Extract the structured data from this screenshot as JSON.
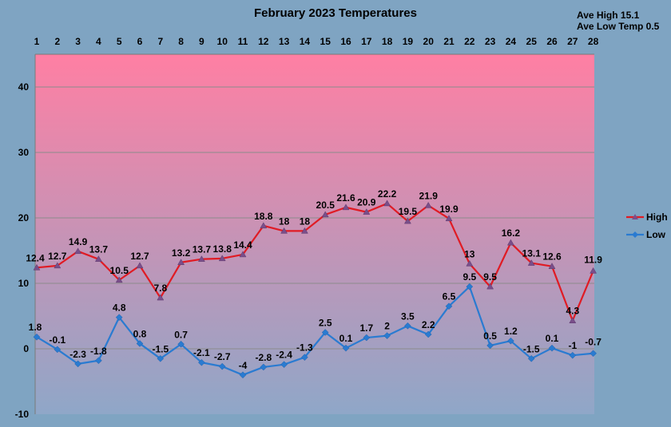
{
  "chart_data": {
    "type": "line",
    "title": "February 2023 Temperatures",
    "stats": {
      "ave_high": "Ave High 15.1",
      "ave_low": "Ave Low Temp 0.5"
    },
    "x": [
      "1",
      "2",
      "3",
      "4",
      "5",
      "6",
      "7",
      "8",
      "9",
      "10",
      "11",
      "12",
      "13",
      "14",
      "15",
      "16",
      "17",
      "18",
      "19",
      "20",
      "21",
      "22",
      "23",
      "24",
      "25",
      "26",
      "27",
      "28"
    ],
    "x_axis_position": "top",
    "ylim": [
      -10,
      45
    ],
    "yticks": [
      -10,
      0,
      10,
      20,
      30,
      40
    ],
    "grid": true,
    "legend_position": "right",
    "background_gradient": {
      "top": "#ff7fa3",
      "bottom": "#8fa7c8"
    },
    "series": [
      {
        "name": "High",
        "color": "#e01b24",
        "marker": "triangle",
        "values": [
          12.4,
          12.7,
          14.9,
          13.7,
          10.5,
          12.7,
          7.8,
          13.2,
          13.7,
          13.8,
          14.4,
          18.8,
          18,
          18,
          20.5,
          21.6,
          20.9,
          22.2,
          19.5,
          21.9,
          19.9,
          13,
          9.5,
          16.2,
          13.1,
          12.6,
          4.3,
          11.9
        ]
      },
      {
        "name": "Low",
        "color": "#2a7bd1",
        "marker": "diamond",
        "values": [
          1.8,
          -0.1,
          -2.3,
          -1.8,
          4.8,
          0.8,
          -1.5,
          0.7,
          -2.1,
          -2.7,
          -4,
          -2.8,
          -2.4,
          -1.3,
          2.5,
          0.1,
          1.7,
          2,
          3.5,
          2.2,
          6.5,
          9.5,
          0.5,
          1.2,
          -1.5,
          0.1,
          -1,
          -0.7
        ]
      }
    ]
  }
}
